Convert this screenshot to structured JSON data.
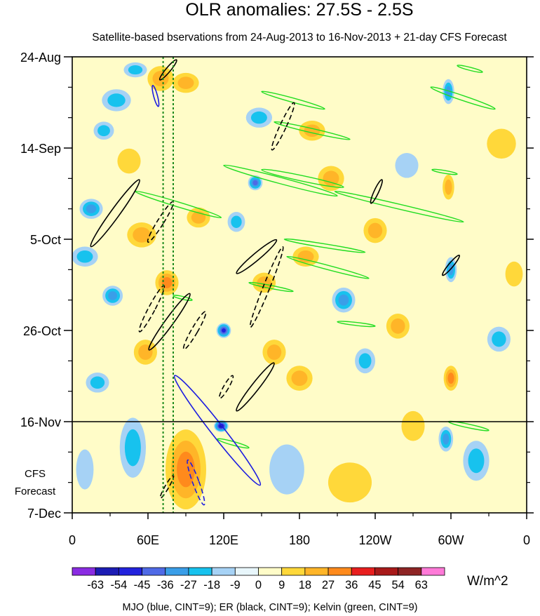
{
  "chart_data": {
    "type": "heatmap",
    "title": "OLR anomalies: 27.5S - 2.5S",
    "subtitle": "Satellite-based bservations from 24-Aug-2013 to 16-Nov-2013 + 21-day CFS Forecast",
    "x_tick_labels": [
      "0",
      "60E",
      "120E",
      "180",
      "120W",
      "60W",
      "0"
    ],
    "x_ticks_lon": [
      0,
      60,
      120,
      180,
      240,
      300,
      360
    ],
    "y_tick_labels": [
      "24-Aug",
      "14-Sep",
      "5-Oct",
      "26-Oct",
      "16-Nov",
      "7-Dec"
    ],
    "y_ticks_day": [
      0,
      21,
      42,
      63,
      84,
      105
    ],
    "xlim": [
      0,
      360
    ],
    "ylim_days": [
      0,
      105
    ],
    "forecast_start_day": 84,
    "forecast_label_line1": "CFS",
    "forecast_label_line2": "Forecast",
    "reference_longitudes": [
      72,
      80
    ],
    "colorbar": {
      "levels": [
        "-63",
        "-54",
        "-45",
        "-36",
        "-27",
        "-18",
        "-9",
        "0",
        "9",
        "18",
        "27",
        "36",
        "45",
        "54",
        "63"
      ],
      "colors": [
        "#8a2be2",
        "#1c1cb4",
        "#2222dd",
        "#4f6ae6",
        "#3a9ee8",
        "#17c2ee",
        "#a6d2f5",
        "#e8f6fb",
        "#fffcc8",
        "#ffd83a",
        "#ffb528",
        "#ff8a1c",
        "#e81e1e",
        "#a81a1a",
        "#8e2424",
        "#ff7ad8"
      ],
      "units": "W/m^2"
    },
    "footer": "MJO (blue, CINT=9); ER (black, CINT=9); Kelvin (green, CINT=9)",
    "series_colors": {
      "MJO": "#1c1ce0",
      "ER": "#000000",
      "Kelvin": "#22dd22"
    },
    "anomaly_patches": [
      {
        "lon": 35,
        "day": 10,
        "rx": 10,
        "ry": 2.2,
        "v": -25
      },
      {
        "lon": 25,
        "day": 17,
        "rx": 7,
        "ry": 1.8,
        "v": -20
      },
      {
        "lon": 70,
        "day": 5,
        "rx": 9,
        "ry": 2.5,
        "v": 20
      },
      {
        "lon": 50,
        "day": 3,
        "rx": 8,
        "ry": 1.5,
        "v": -18
      },
      {
        "lon": 15,
        "day": 35,
        "rx": 8,
        "ry": 2,
        "v": -30
      },
      {
        "lon": 10,
        "day": 46,
        "rx": 9,
        "ry": 2,
        "v": -25
      },
      {
        "lon": 32,
        "day": 55,
        "rx": 7,
        "ry": 2,
        "v": -30
      },
      {
        "lon": 20,
        "day": 75,
        "rx": 8,
        "ry": 2,
        "v": -22
      },
      {
        "lon": 55,
        "day": 41,
        "rx": 10,
        "ry": 2.5,
        "v": 25
      },
      {
        "lon": 75,
        "day": 52,
        "rx": 8,
        "ry": 2.5,
        "v": 30
      },
      {
        "lon": 45,
        "day": 24,
        "rx": 8,
        "ry": 2.5,
        "v": 15
      },
      {
        "lon": 58,
        "day": 68,
        "rx": 8,
        "ry": 2.5,
        "v": 20
      },
      {
        "lon": 90,
        "day": 6,
        "rx": 9,
        "ry": 2,
        "v": 18
      },
      {
        "lon": 100,
        "day": 37,
        "rx": 8,
        "ry": 2,
        "v": 20
      },
      {
        "lon": 130,
        "day": 38,
        "rx": 6,
        "ry": 2,
        "v": -22
      },
      {
        "lon": 148,
        "day": 14,
        "rx": 9,
        "ry": 2,
        "v": -18
      },
      {
        "lon": 152,
        "day": 52,
        "rx": 8,
        "ry": 2,
        "v": 22
      },
      {
        "lon": 120,
        "day": 63,
        "rx": 5,
        "ry": 1.5,
        "v": -45
      },
      {
        "lon": 160,
        "day": 68,
        "rx": 8,
        "ry": 2.5,
        "v": 22
      },
      {
        "lon": 190,
        "day": 17,
        "rx": 9,
        "ry": 2,
        "v": 22
      },
      {
        "lon": 205,
        "day": 28,
        "rx": 9,
        "ry": 2.5,
        "v": 24
      },
      {
        "lon": 185,
        "day": 46,
        "rx": 9,
        "ry": 2,
        "v": 24
      },
      {
        "lon": 215,
        "day": 56,
        "rx": 8,
        "ry": 2.5,
        "v": -28
      },
      {
        "lon": 180,
        "day": 74,
        "rx": 9,
        "ry": 2.5,
        "v": 20
      },
      {
        "lon": 232,
        "day": 70,
        "rx": 7,
        "ry": 2.5,
        "v": -20
      },
      {
        "lon": 240,
        "day": 40,
        "rx": 8,
        "ry": 2.5,
        "v": 18
      },
      {
        "lon": 258,
        "day": 62,
        "rx": 8,
        "ry": 2.5,
        "v": 20
      },
      {
        "lon": 298,
        "day": 8,
        "rx": 4,
        "ry": 2.5,
        "v": -28
      },
      {
        "lon": 298,
        "day": 30,
        "rx": 4,
        "ry": 2.5,
        "v": 22
      },
      {
        "lon": 300,
        "day": 49,
        "rx": 4,
        "ry": 2.5,
        "v": -27
      },
      {
        "lon": 300,
        "day": 74,
        "rx": 5,
        "ry": 2.5,
        "v": 27
      },
      {
        "lon": 296,
        "day": 88,
        "rx": 5,
        "ry": 2.5,
        "v": -30
      },
      {
        "lon": 320,
        "day": 93,
        "rx": 9,
        "ry": 4,
        "v": -18
      },
      {
        "lon": 338,
        "day": 65,
        "rx": 8,
        "ry": 2.5,
        "v": -18
      },
      {
        "lon": 265,
        "day": 25,
        "rx": 8,
        "ry": 2.5,
        "v": -15
      },
      {
        "lon": 350,
        "day": 50,
        "rx": 6,
        "ry": 2.5,
        "v": 16
      },
      {
        "lon": 48,
        "day": 90,
        "rx": 9,
        "ry": 6,
        "v": -25
      },
      {
        "lon": 90,
        "day": 95,
        "rx": 14,
        "ry": 8,
        "v": 28
      },
      {
        "lon": 118,
        "day": 85,
        "rx": 5,
        "ry": 1.2,
        "v": -55
      },
      {
        "lon": 170,
        "day": 95,
        "rx": 12,
        "ry": 5,
        "v": -12
      },
      {
        "lon": 220,
        "day": 98,
        "rx": 15,
        "ry": 4,
        "v": 12
      },
      {
        "lon": 270,
        "day": 85,
        "rx": 8,
        "ry": 3,
        "v": 15
      },
      {
        "lon": 10,
        "day": 95,
        "rx": 6,
        "ry": 4,
        "v": -16
      },
      {
        "lon": 340,
        "day": 20,
        "rx": 10,
        "ry": 3,
        "v": 14
      },
      {
        "lon": 145,
        "day": 29,
        "rx": 5,
        "ry": 1.5,
        "v": -40
      }
    ],
    "kelvin_contours": [
      {
        "lon1": 50,
        "day1": 31,
        "lon2": 118,
        "day2": 37,
        "w": 0.8
      },
      {
        "lon1": 120,
        "day1": 25,
        "lon2": 210,
        "day2": 32,
        "w": 1.0
      },
      {
        "lon1": 150,
        "day1": 26,
        "lon2": 215,
        "day2": 30,
        "w": 0.9
      },
      {
        "lon1": 208,
        "day1": 31,
        "lon2": 310,
        "day2": 38,
        "w": 0.8
      },
      {
        "lon1": 150,
        "day1": 8,
        "lon2": 200,
        "day2": 12,
        "w": 0.7
      },
      {
        "lon1": 160,
        "day1": 15,
        "lon2": 220,
        "day2": 19,
        "w": 0.7
      },
      {
        "lon1": 168,
        "day1": 42,
        "lon2": 232,
        "day2": 45,
        "w": 0.6
      },
      {
        "lon1": 170,
        "day1": 46,
        "lon2": 235,
        "day2": 51,
        "w": 0.7
      },
      {
        "lon1": 140,
        "day1": 52,
        "lon2": 175,
        "day2": 54,
        "w": 0.5
      },
      {
        "lon1": 210,
        "day1": 61,
        "lon2": 240,
        "day2": 62,
        "w": 0.5
      },
      {
        "lon1": 284,
        "day1": 7,
        "lon2": 335,
        "day2": 12,
        "w": 0.8
      },
      {
        "lon1": 305,
        "day1": 2,
        "lon2": 325,
        "day2": 3.5,
        "w": 0.5
      },
      {
        "lon1": 298,
        "day1": 84,
        "lon2": 330,
        "day2": 86,
        "w": 0.6
      },
      {
        "lon1": 115,
        "day1": 88,
        "lon2": 140,
        "day2": 90,
        "w": 0.6
      },
      {
        "lon1": 285,
        "day1": 26,
        "lon2": 305,
        "day2": 27,
        "w": 0.4
      },
      {
        "lon1": 80,
        "day1": 55,
        "lon2": 95,
        "day2": 56,
        "w": 0.4
      }
    ],
    "er_contours": [
      {
        "lon": 34,
        "day": 36,
        "rx": 3.5,
        "ry": 9.5,
        "rot": 36,
        "dash": false
      },
      {
        "lon": 70,
        "day": 38,
        "rx": 2.5,
        "ry": 5.5,
        "rot": 32,
        "dash": true
      },
      {
        "lon": 146,
        "day": 46,
        "rx": 2.8,
        "ry": 6,
        "rot": 50,
        "dash": false
      },
      {
        "lon": 154,
        "day": 53,
        "rx": 2.6,
        "ry": 10,
        "rot": 22,
        "dash": true
      },
      {
        "lon": 63,
        "day": 58,
        "rx": 2.6,
        "ry": 6,
        "rot": 28,
        "dash": true
      },
      {
        "lon": 77,
        "day": 61,
        "rx": 3.2,
        "ry": 8,
        "rot": 36,
        "dash": false
      },
      {
        "lon": 97,
        "day": 63,
        "rx": 2.5,
        "ry": 5,
        "rot": 30,
        "dash": true
      },
      {
        "lon": 167,
        "day": 16,
        "rx": 2.5,
        "ry": 6,
        "rot": 25,
        "dash": true
      },
      {
        "lon": 145,
        "day": 76,
        "rx": 3,
        "ry": 7,
        "rot": 38,
        "dash": false
      },
      {
        "lon": 241,
        "day": 31,
        "rx": 1.8,
        "ry": 3,
        "rot": 25,
        "dash": false
      },
      {
        "lon": 300,
        "day": 48,
        "rx": 1.8,
        "ry": 3,
        "rot": 40,
        "dash": false
      },
      {
        "lon": 122,
        "day": 76,
        "rx": 2,
        "ry": 3,
        "rot": 30,
        "dash": true
      },
      {
        "lon": 76,
        "day": 3,
        "rx": 1.8,
        "ry": 3,
        "rot": 40,
        "dash": false
      },
      {
        "lon": 75,
        "day": 99,
        "rx": 1.5,
        "ry": 3,
        "rot": 30,
        "dash": true
      }
    ],
    "mjo_contours": [
      {
        "lon": 115,
        "day": 86,
        "rx": 5,
        "ry": 16,
        "rot": -38,
        "dash": false
      },
      {
        "lon": 98,
        "day": 98,
        "rx": 2.5,
        "ry": 5.5,
        "rot": -20,
        "dash": true
      },
      {
        "lon": 66,
        "day": 9,
        "rx": 1.5,
        "ry": 2.5,
        "rot": -15,
        "dash": false
      }
    ]
  }
}
